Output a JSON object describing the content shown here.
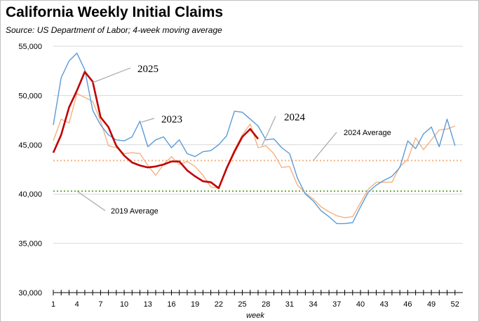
{
  "chart_data": {
    "type": "line",
    "title": "California Weekly Initial Claims",
    "subtitle": "Source:  US Department of Labor; 4-week moving average",
    "xlabel": "week",
    "ylabel": "",
    "xlim": [
      1,
      53
    ],
    "ylim": [
      30000,
      55000
    ],
    "yticks": [
      30000,
      35000,
      40000,
      45000,
      50000,
      55000
    ],
    "ytick_labels": [
      "30,000",
      "35,000",
      "40,000",
      "45,000",
      "50,000",
      "55,000"
    ],
    "xticks": [
      1,
      4,
      7,
      10,
      13,
      16,
      19,
      22,
      25,
      28,
      31,
      34,
      37,
      40,
      43,
      46,
      49,
      52
    ],
    "grid": "horizontal",
    "series": [
      {
        "name": "2025",
        "color": "#c00000",
        "x": [
          1,
          2,
          3,
          4,
          5,
          6,
          7,
          8,
          9,
          10,
          11,
          12,
          13,
          14,
          15,
          16,
          17,
          18,
          19,
          20,
          21,
          22,
          23,
          24,
          25,
          26,
          27
        ],
        "values": [
          44200,
          46000,
          48800,
          50500,
          52400,
          51400,
          47800,
          46800,
          44900,
          43900,
          43200,
          42900,
          42700,
          42800,
          43000,
          43300,
          43300,
          42400,
          41800,
          41300,
          41200,
          40600,
          42600,
          44300,
          45800,
          46600,
          45600
        ]
      },
      {
        "name": "2023",
        "color": "#5b9bd5",
        "x": [
          1,
          2,
          3,
          4,
          5,
          6,
          7,
          8,
          9,
          10,
          11,
          12,
          13,
          14,
          15,
          16,
          17,
          18,
          19,
          20,
          21,
          22,
          23,
          24,
          25,
          26,
          27,
          28,
          29,
          30,
          31,
          32,
          33,
          34,
          35,
          36,
          37,
          38,
          39,
          40,
          41,
          42,
          43,
          44,
          45,
          46,
          47,
          48,
          49,
          50,
          51,
          52
        ],
        "values": [
          47000,
          51800,
          53500,
          54300,
          52600,
          48500,
          47000,
          46000,
          45500,
          45400,
          45800,
          47400,
          44800,
          45500,
          45800,
          44700,
          45500,
          44100,
          43800,
          44300,
          44400,
          45000,
          45900,
          48400,
          48300,
          47600,
          46900,
          45500,
          45600,
          44700,
          44100,
          41600,
          40000,
          39300,
          38300,
          37700,
          37000,
          37000,
          37100,
          38700,
          40200,
          40900,
          41400,
          41800,
          42700,
          45400,
          44600,
          46100,
          46800,
          44800,
          47600,
          44900
        ]
      },
      {
        "name": "2024",
        "color": "#f4b183",
        "x": [
          1,
          2,
          3,
          4,
          5,
          6,
          7,
          8,
          9,
          10,
          11,
          12,
          13,
          14,
          15,
          16,
          17,
          18,
          19,
          20,
          21,
          22,
          23,
          24,
          25,
          26,
          27,
          28,
          29,
          30,
          31,
          32,
          33,
          34,
          35,
          36,
          37,
          38,
          39,
          40,
          41,
          42,
          43,
          44,
          45,
          46,
          47,
          48,
          49,
          50,
          51,
          52
        ],
        "values": [
          45400,
          47600,
          47200,
          50200,
          49800,
          49400,
          47400,
          44900,
          44700,
          44100,
          44200,
          44100,
          42900,
          41900,
          43000,
          43800,
          43000,
          43300,
          42800,
          41900,
          40700,
          40600,
          42700,
          44500,
          46000,
          47100,
          44700,
          44900,
          44100,
          42700,
          42800,
          40900,
          40100,
          39500,
          38700,
          38200,
          37800,
          37600,
          37700,
          39100,
          40500,
          41200,
          41200,
          41200,
          42800,
          43500,
          45700,
          44500,
          45500,
          46500,
          46600,
          46900
        ]
      }
    ],
    "reference_lines": [
      {
        "name": "2024 Average",
        "value": 43400,
        "color": "#f4b183"
      },
      {
        "name": "2019 Average",
        "value": 40300,
        "color": "#70ad47"
      }
    ],
    "annotations": [
      "2025",
      "2023",
      "2024",
      "2024 Average",
      "2019 Average"
    ]
  }
}
